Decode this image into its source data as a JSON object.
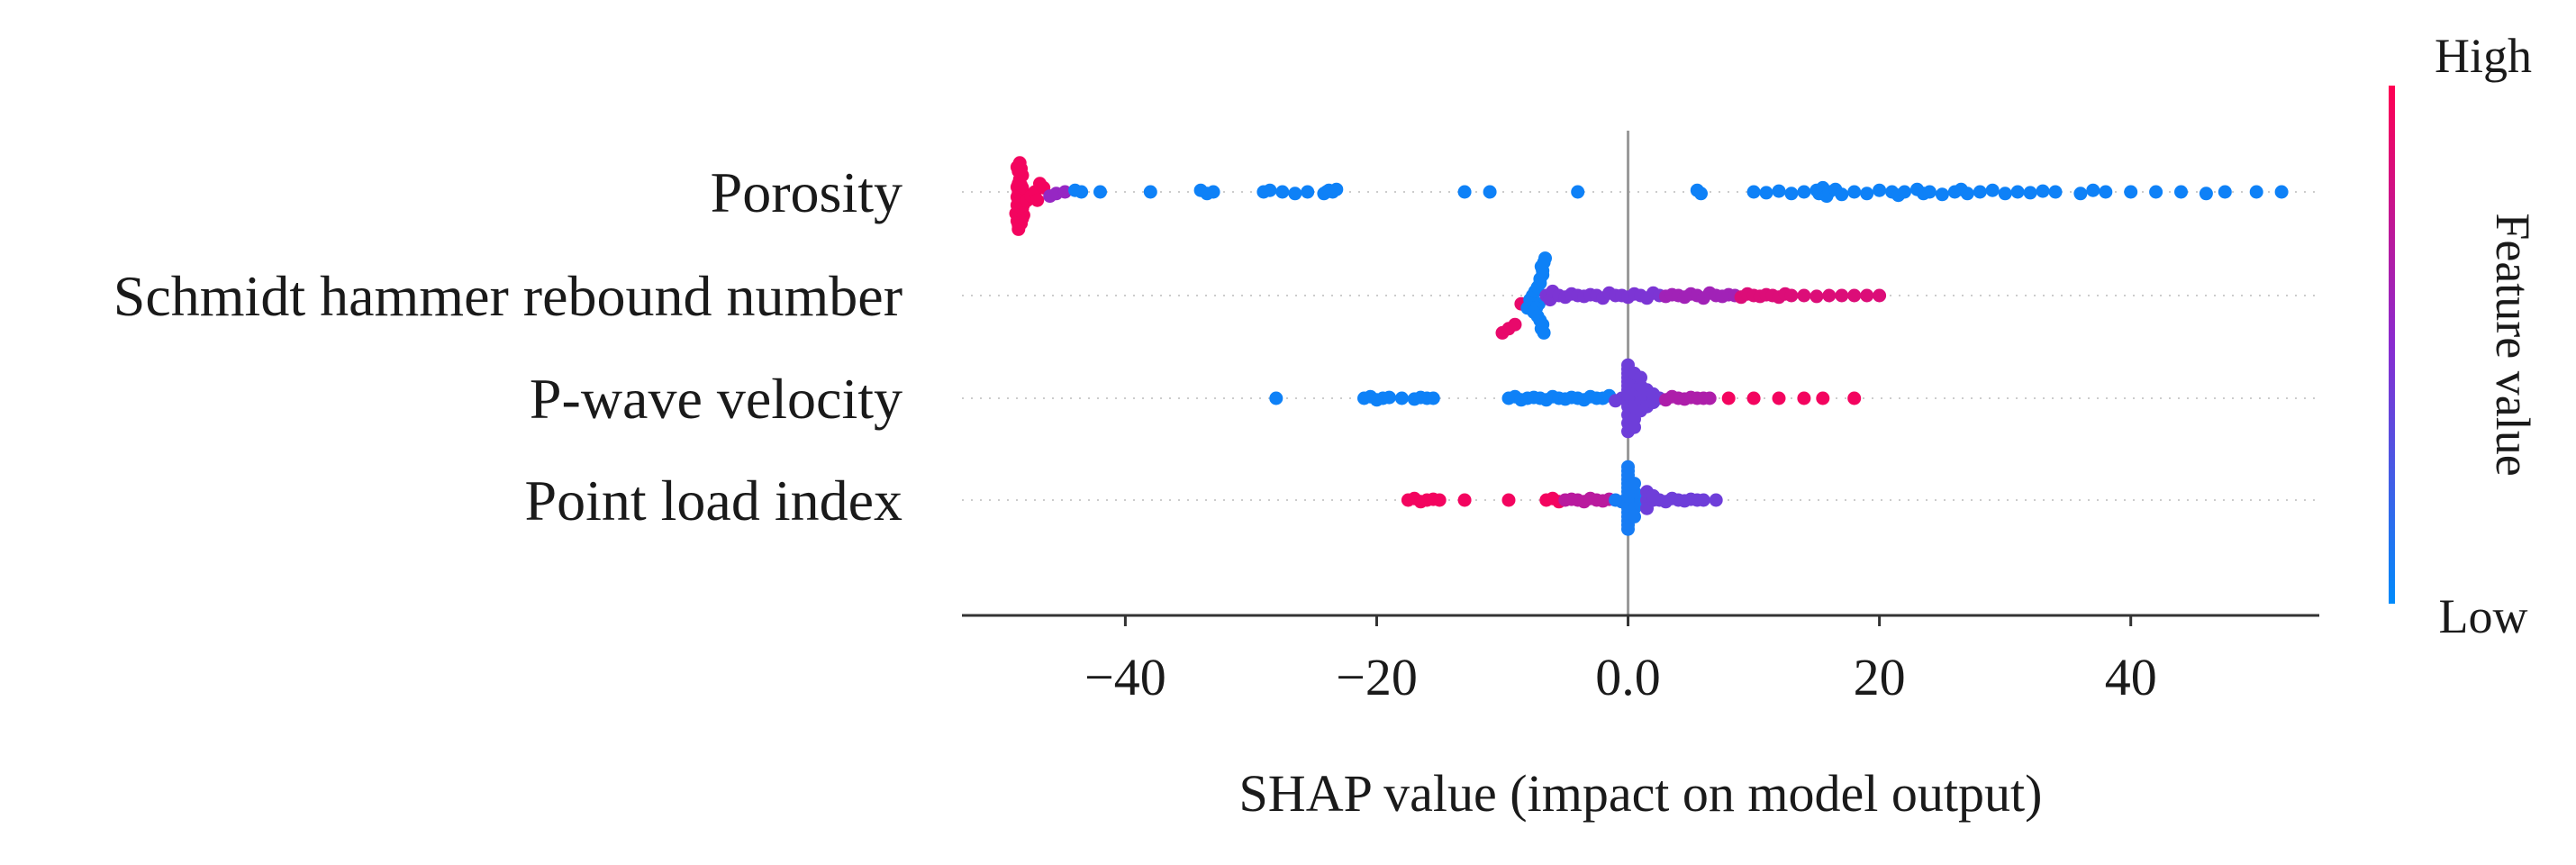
{
  "chart_data": {
    "type": "scatter",
    "subtype": "shap-beeswarm",
    "title": "",
    "xlabel": "SHAP value (impact on model output)",
    "ylabel": "",
    "xlim": [
      -53,
      55
    ],
    "xticks": [
      -40,
      -20,
      0,
      20,
      40
    ],
    "xtick_labels": [
      "−40",
      "−20",
      "0.0",
      "20",
      "40"
    ],
    "features": [
      {
        "name": "Porosity",
        "points": [
          [
            -48.5,
            0.95
          ],
          [
            -48.5,
            0.9
          ],
          [
            -48.3,
            0.88
          ],
          [
            -48.6,
            0.85
          ],
          [
            -48.2,
            0.82
          ],
          [
            -48.4,
            0.8
          ],
          [
            -48.1,
            0.78
          ],
          [
            -48.7,
            0.76
          ],
          [
            -48.3,
            0.74
          ],
          [
            -48.5,
            0.72
          ],
          [
            -48.2,
            0.7
          ],
          [
            -48.4,
            0.68
          ],
          [
            -48.6,
            0.66
          ],
          [
            -48.1,
            0.65
          ],
          [
            -48.3,
            0.63
          ],
          [
            -48.5,
            0.62
          ],
          [
            -48.2,
            0.6
          ],
          [
            -48.4,
            0.58
          ],
          [
            -48.6,
            0.56
          ],
          [
            -48.3,
            0.55
          ],
          [
            -48.5,
            0.5
          ],
          [
            -48.3,
            0.48
          ],
          [
            -48.4,
            0.46
          ],
          [
            -48.2,
            0.45
          ],
          [
            -48.6,
            0.44
          ],
          [
            -48.3,
            0.42
          ],
          [
            -48.5,
            0.4
          ],
          [
            -48.4,
            0.35
          ],
          [
            -48.2,
            0.3
          ],
          [
            -48.5,
            0.25
          ],
          [
            -48.3,
            0.22
          ],
          [
            -48.6,
            0.2
          ],
          [
            -48.4,
            0.15
          ],
          [
            -47.8,
            0.6
          ],
          [
            -47.5,
            0.55
          ],
          [
            -47.2,
            0.5
          ],
          [
            -47.0,
            0.6
          ],
          [
            -46.8,
            0.4
          ],
          [
            -46.5,
            0.45
          ],
          [
            -46.0,
            0.55
          ],
          [
            -45.5,
            0.52
          ],
          [
            -44.8,
            0.5
          ],
          [
            -44.0,
            0.48
          ],
          [
            -43.5,
            0.5
          ],
          [
            -42.0,
            0.5
          ],
          [
            -38.0,
            0.5
          ],
          [
            -34.0,
            0.48
          ],
          [
            -33.5,
            0.52
          ],
          [
            -33.0,
            0.5
          ],
          [
            -29.0,
            0.5
          ],
          [
            -28.5,
            0.48
          ],
          [
            -27.5,
            0.5
          ],
          [
            -26.5,
            0.52
          ],
          [
            -25.5,
            0.5
          ],
          [
            -24.2,
            0.52
          ],
          [
            -24.0,
            0.5
          ],
          [
            -23.8,
            0.48
          ],
          [
            -23.5,
            0.5
          ],
          [
            -23.2,
            0.47
          ],
          [
            -13.0,
            0.5
          ],
          [
            -11.0,
            0.5
          ],
          [
            -4.0,
            0.5
          ],
          [
            5.5,
            0.48
          ],
          [
            5.8,
            0.52
          ],
          [
            10.0,
            0.5
          ],
          [
            11.0,
            0.51
          ],
          [
            12.0,
            0.49
          ],
          [
            13.0,
            0.52
          ],
          [
            14.0,
            0.5
          ],
          [
            15.0,
            0.48
          ],
          [
            15.2,
            0.52
          ],
          [
            15.5,
            0.45
          ],
          [
            15.8,
            0.55
          ],
          [
            16.0,
            0.5
          ],
          [
            16.5,
            0.47
          ],
          [
            17.0,
            0.53
          ],
          [
            18.0,
            0.5
          ],
          [
            19.0,
            0.52
          ],
          [
            20.0,
            0.48
          ],
          [
            21.0,
            0.5
          ],
          [
            21.5,
            0.54
          ],
          [
            22.0,
            0.5
          ],
          [
            23.0,
            0.47
          ],
          [
            23.5,
            0.52
          ],
          [
            24.0,
            0.5
          ],
          [
            25.0,
            0.53
          ],
          [
            26.0,
            0.5
          ],
          [
            26.5,
            0.47
          ],
          [
            27.0,
            0.52
          ],
          [
            28.0,
            0.5
          ],
          [
            29.0,
            0.48
          ],
          [
            30.0,
            0.52
          ],
          [
            31.0,
            0.5
          ],
          [
            32.0,
            0.51
          ],
          [
            33.0,
            0.49
          ],
          [
            34.0,
            0.5
          ],
          [
            36.0,
            0.52
          ],
          [
            37.0,
            0.48
          ],
          [
            38.0,
            0.5
          ],
          [
            40.0,
            0.5
          ],
          [
            42.0,
            0.5
          ],
          [
            44.0,
            0.5
          ],
          [
            46.0,
            0.52
          ],
          [
            47.5,
            0.5
          ],
          [
            50.0,
            0.5
          ],
          [
            52.0,
            0.5
          ]
        ]
      },
      {
        "name": "Schmidt hammer rebound number",
        "points": [
          [
            -10.0,
            0.95
          ],
          [
            -9.5,
            0.9
          ],
          [
            -9.0,
            0.85
          ],
          [
            -8.5,
            0.6
          ],
          [
            -8.0,
            0.65
          ],
          [
            -7.8,
            0.55
          ],
          [
            -7.6,
            0.5
          ],
          [
            -7.4,
            0.45
          ],
          [
            -7.2,
            0.4
          ],
          [
            -7.0,
            0.35
          ],
          [
            -7.0,
            0.3
          ],
          [
            -6.8,
            0.25
          ],
          [
            -6.8,
            0.2
          ],
          [
            -6.9,
            0.15
          ],
          [
            -6.7,
            0.1
          ],
          [
            -6.6,
            0.05
          ],
          [
            -7.1,
            0.6
          ],
          [
            -7.3,
            0.65
          ],
          [
            -7.5,
            0.7
          ],
          [
            -7.2,
            0.75
          ],
          [
            -7.0,
            0.8
          ],
          [
            -6.8,
            0.85
          ],
          [
            -6.9,
            0.9
          ],
          [
            -6.7,
            0.95
          ],
          [
            -6.5,
            0.5
          ],
          [
            -6.2,
            0.55
          ],
          [
            -6.0,
            0.45
          ],
          [
            -5.5,
            0.5
          ],
          [
            -5.0,
            0.52
          ],
          [
            -4.5,
            0.48
          ],
          [
            -4.0,
            0.5
          ],
          [
            -3.5,
            0.51
          ],
          [
            -3.0,
            0.49
          ],
          [
            -2.5,
            0.5
          ],
          [
            -2.0,
            0.53
          ],
          [
            -1.5,
            0.47
          ],
          [
            -1.0,
            0.5
          ],
          [
            -0.5,
            0.5
          ],
          [
            0.0,
            0.52
          ],
          [
            0.5,
            0.48
          ],
          [
            1.0,
            0.5
          ],
          [
            1.5,
            0.53
          ],
          [
            2.0,
            0.47
          ],
          [
            2.5,
            0.5
          ],
          [
            3.0,
            0.51
          ],
          [
            3.5,
            0.49
          ],
          [
            4.0,
            0.5
          ],
          [
            4.5,
            0.52
          ],
          [
            5.0,
            0.48
          ],
          [
            5.5,
            0.5
          ],
          [
            6.0,
            0.53
          ],
          [
            6.5,
            0.47
          ],
          [
            7.0,
            0.5
          ],
          [
            7.5,
            0.51
          ],
          [
            8.0,
            0.49
          ],
          [
            8.5,
            0.5
          ],
          [
            9.0,
            0.52
          ],
          [
            9.5,
            0.48
          ],
          [
            10.0,
            0.5
          ],
          [
            10.5,
            0.51
          ],
          [
            11.0,
            0.49
          ],
          [
            11.5,
            0.5
          ],
          [
            12.0,
            0.52
          ],
          [
            12.5,
            0.48
          ],
          [
            13.0,
            0.5
          ],
          [
            14.0,
            0.5
          ],
          [
            15.0,
            0.51
          ],
          [
            16.0,
            0.5
          ],
          [
            17.0,
            0.5
          ],
          [
            18.0,
            0.5
          ],
          [
            19.0,
            0.5
          ],
          [
            20.0,
            0.5
          ]
        ]
      },
      {
        "name": "P-wave velocity",
        "points": [
          [
            -28.0,
            0.5
          ],
          [
            -21.0,
            0.5
          ],
          [
            -20.5,
            0.48
          ],
          [
            -20.0,
            0.52
          ],
          [
            -19.5,
            0.5
          ],
          [
            -19.0,
            0.49
          ],
          [
            -18.0,
            0.5
          ],
          [
            -17.0,
            0.51
          ],
          [
            -16.5,
            0.49
          ],
          [
            -16.0,
            0.5
          ],
          [
            -15.5,
            0.5
          ],
          [
            -9.5,
            0.5
          ],
          [
            -9.0,
            0.48
          ],
          [
            -8.5,
            0.52
          ],
          [
            -8.0,
            0.5
          ],
          [
            -7.5,
            0.49
          ],
          [
            -7.0,
            0.5
          ],
          [
            -6.5,
            0.52
          ],
          [
            -6.0,
            0.48
          ],
          [
            -5.5,
            0.5
          ],
          [
            -5.0,
            0.51
          ],
          [
            -4.5,
            0.49
          ],
          [
            -4.0,
            0.5
          ],
          [
            -3.5,
            0.52
          ],
          [
            -3.0,
            0.48
          ],
          [
            -2.5,
            0.5
          ],
          [
            -2.0,
            0.5
          ],
          [
            -1.5,
            0.47
          ],
          [
            -1.0,
            0.53
          ],
          [
            -0.5,
            0.5
          ],
          [
            0.0,
            0.5
          ],
          [
            0.0,
            0.55
          ],
          [
            0.0,
            0.45
          ],
          [
            0.0,
            0.6
          ],
          [
            0.0,
            0.4
          ],
          [
            0.0,
            0.35
          ],
          [
            0.0,
            0.3
          ],
          [
            0.0,
            0.25
          ],
          [
            0.0,
            0.2
          ],
          [
            0.0,
            0.15
          ],
          [
            0.0,
            0.1
          ],
          [
            0.0,
            0.7
          ],
          [
            0.0,
            0.8
          ],
          [
            0.0,
            0.9
          ],
          [
            0.5,
            0.5
          ],
          [
            0.5,
            0.4
          ],
          [
            0.5,
            0.6
          ],
          [
            0.5,
            0.3
          ],
          [
            0.5,
            0.2
          ],
          [
            0.5,
            0.75
          ],
          [
            0.5,
            0.85
          ],
          [
            1.0,
            0.5
          ],
          [
            1.0,
            0.45
          ],
          [
            1.0,
            0.55
          ],
          [
            1.0,
            0.35
          ],
          [
            1.0,
            0.65
          ],
          [
            1.0,
            0.25
          ],
          [
            1.5,
            0.5
          ],
          [
            1.5,
            0.6
          ],
          [
            1.5,
            0.4
          ],
          [
            2.0,
            0.5
          ],
          [
            2.0,
            0.55
          ],
          [
            2.0,
            0.45
          ],
          [
            2.5,
            0.5
          ],
          [
            3.0,
            0.52
          ],
          [
            3.5,
            0.48
          ],
          [
            4.0,
            0.5
          ],
          [
            4.5,
            0.51
          ],
          [
            5.0,
            0.49
          ],
          [
            5.5,
            0.5
          ],
          [
            6.0,
            0.5
          ],
          [
            6.5,
            0.5
          ],
          [
            8.0,
            0.5
          ],
          [
            10.0,
            0.5
          ],
          [
            12.0,
            0.5
          ],
          [
            14.0,
            0.5
          ],
          [
            15.5,
            0.5
          ],
          [
            18.0,
            0.5
          ]
        ]
      },
      {
        "name": "Point load index",
        "points": [
          [
            -17.5,
            0.5
          ],
          [
            -17.0,
            0.48
          ],
          [
            -16.5,
            0.52
          ],
          [
            -16.0,
            0.5
          ],
          [
            -15.5,
            0.49
          ],
          [
            -15.0,
            0.5
          ],
          [
            -13.0,
            0.5
          ],
          [
            -9.5,
            0.5
          ],
          [
            -6.5,
            0.5
          ],
          [
            -6.0,
            0.48
          ],
          [
            -5.5,
            0.52
          ],
          [
            -5.0,
            0.5
          ],
          [
            -4.5,
            0.49
          ],
          [
            -4.0,
            0.5
          ],
          [
            -3.5,
            0.52
          ],
          [
            -3.0,
            0.48
          ],
          [
            -2.5,
            0.5
          ],
          [
            -2.0,
            0.51
          ],
          [
            -1.5,
            0.49
          ],
          [
            -1.0,
            0.5
          ],
          [
            -0.5,
            0.52
          ],
          [
            0.0,
            0.5
          ],
          [
            0.0,
            0.55
          ],
          [
            0.0,
            0.45
          ],
          [
            0.0,
            0.6
          ],
          [
            0.0,
            0.4
          ],
          [
            0.0,
            0.35
          ],
          [
            0.0,
            0.3
          ],
          [
            0.0,
            0.25
          ],
          [
            0.0,
            0.2
          ],
          [
            0.0,
            0.15
          ],
          [
            0.0,
            0.1
          ],
          [
            0.0,
            0.65
          ],
          [
            0.0,
            0.7
          ],
          [
            0.0,
            0.75
          ],
          [
            0.0,
            0.8
          ],
          [
            0.0,
            0.85
          ],
          [
            0.5,
            0.5
          ],
          [
            0.5,
            0.4
          ],
          [
            0.5,
            0.6
          ],
          [
            0.5,
            0.3
          ],
          [
            0.5,
            0.7
          ],
          [
            1.0,
            0.5
          ],
          [
            1.0,
            0.45
          ],
          [
            1.0,
            0.55
          ],
          [
            1.5,
            0.5
          ],
          [
            1.5,
            0.4
          ],
          [
            1.5,
            0.6
          ],
          [
            2.0,
            0.5
          ],
          [
            2.0,
            0.45
          ],
          [
            2.5,
            0.5
          ],
          [
            3.0,
            0.52
          ],
          [
            3.5,
            0.48
          ],
          [
            4.0,
            0.5
          ],
          [
            4.5,
            0.51
          ],
          [
            5.0,
            0.49
          ],
          [
            5.5,
            0.5
          ],
          [
            6.0,
            0.5
          ],
          [
            7.0,
            0.5
          ]
        ]
      }
    ],
    "colorbar": {
      "label": "Feature value",
      "high_label": "High",
      "low_label": "Low",
      "high_color": "#ff0052",
      "low_color": "#008bfb"
    },
    "zero_line": true
  }
}
